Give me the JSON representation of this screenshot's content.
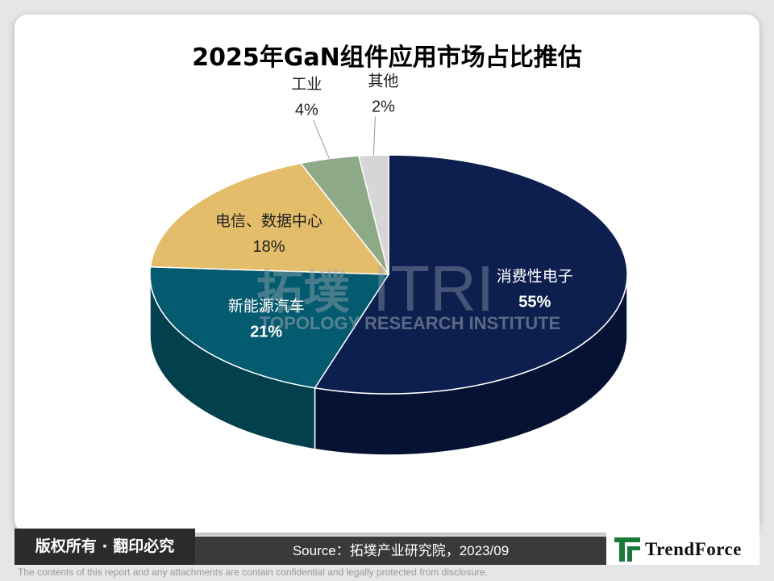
{
  "title": "2025年GaN组件应用市场占比推估",
  "chart_data": {
    "type": "pie",
    "slices": [
      {
        "label": "消费性电子",
        "value": 55,
        "value_text": "55%",
        "color": "#0c1f4f",
        "side_color": "#061233"
      },
      {
        "label": "新能源汽车",
        "value": 21,
        "value_text": "21%",
        "color": "#045a6e",
        "side_color": "#03404e"
      },
      {
        "label": "电信、数据中心",
        "value": 18,
        "value_text": "18%",
        "color": "#e3bd69",
        "side_color": "#b08e45"
      },
      {
        "label": "工业",
        "value": 4,
        "value_text": "4%",
        "color": "#8ea987",
        "side_color": "#6b8465"
      },
      {
        "label": "其他",
        "value": 2,
        "value_text": "2%",
        "color": "#d6d6d6",
        "side_color": "#a8a8a8"
      }
    ]
  },
  "watermark": {
    "cn": "拓墣",
    "itri": "ITRI",
    "en": "TOPOLOGY RESEARCH INSTITUTE"
  },
  "footer": {
    "rights": "版权所有 · 翻印必究",
    "source": "Source：拓墣产业研究院，2023/09",
    "brand": "TrendForce",
    "disclaimer": "The contents of this report and any attachments are contain confidential and legally protected from disclosure."
  },
  "colors": {
    "card_bg": "#ffffff",
    "page_bg": "#e6e6e6",
    "footer_dark": "#2b2b2b",
    "logo_green": "#1a7a3a"
  }
}
